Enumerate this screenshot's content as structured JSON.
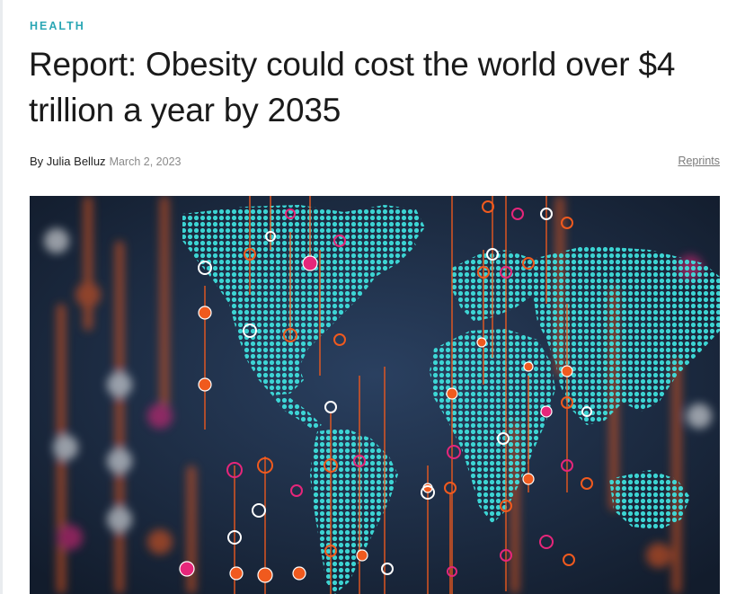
{
  "article": {
    "kicker": "HEALTH",
    "headline": "Report: Obesity could cost the world over $4 trillion a year by 2035",
    "byline_prefix": "By ",
    "author": "Julia Belluz",
    "date": "March 2, 2023",
    "reprints_label": "Reprints"
  },
  "hero_image": {
    "description_icon": "world-map-data-points-illustration",
    "colors": {
      "background": "#1c2a3e",
      "map": "#3fe3e0",
      "marker_orange": "#f05a1e",
      "marker_pink": "#e6267a",
      "marker_white": "#ffffff"
    }
  }
}
